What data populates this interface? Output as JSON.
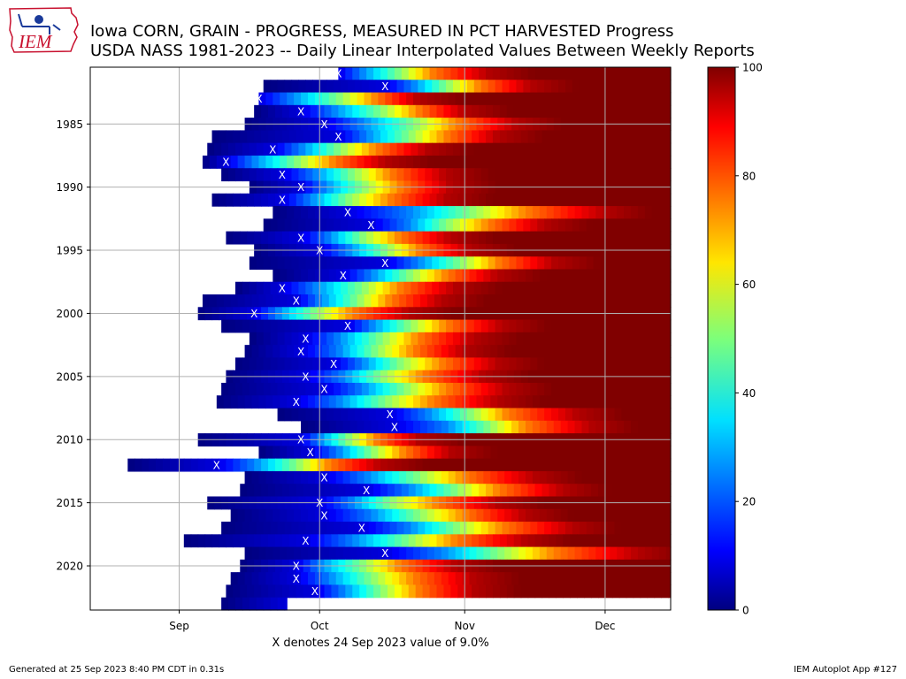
{
  "header": {
    "title_line1": "Iowa CORN, GRAIN - PROGRESS, MEASURED IN PCT HARVESTED Progress",
    "title_line2": "USDA NASS 1981-2023 -- Daily Linear Interpolated Values Between Weekly Reports",
    "logo_text": "IEM"
  },
  "footer": {
    "generated": "Generated at 25 Sep 2023 8:40 PM CDT in 0.31s",
    "app": "IEM Autoplot App #127"
  },
  "colors": {
    "logo_red": "#c8102e",
    "logo_blue": "#1a3a9a",
    "marker": "#ffffff",
    "grid": "#b0b0b0",
    "nodata": "#ffffff"
  },
  "chart_data": {
    "type": "heatmap",
    "colormap": "jet",
    "xlabel": "X denotes 24 Sep 2023 value of 9.0%",
    "x_ticks": [
      {
        "label": "Sep",
        "date": "Sep 1"
      },
      {
        "label": "Oct",
        "date": "Oct 1"
      },
      {
        "label": "Nov",
        "date": "Nov 1"
      },
      {
        "label": "Dec",
        "date": "Dec 1"
      }
    ],
    "xlim": [
      "Aug 13",
      "Dec 15"
    ],
    "y_ticks": [
      1985,
      1990,
      1995,
      2000,
      2005,
      2010,
      2015,
      2020
    ],
    "ylim": [
      1980.5,
      2023.5
    ],
    "y_inverted": true,
    "colorbar": {
      "ticks": [
        0,
        20,
        40,
        60,
        80,
        100
      ],
      "range": [
        0,
        100
      ]
    },
    "grid": true,
    "marker": "X",
    "rows": [
      {
        "year": 1981,
        "start": "Oct 5",
        "x_mark": "Oct 5",
        "p9": "Oct 5",
        "p25": "Oct 10",
        "p50": "Oct 18",
        "p75": "Oct 25",
        "p95": "Nov 6"
      },
      {
        "year": 1982,
        "start": "Sep 19",
        "x_mark": "Oct 15",
        "p9": "Oct 15",
        "p25": "Oct 21",
        "p50": "Oct 28",
        "p75": "Nov 4",
        "p95": "Nov 15"
      },
      {
        "year": 1983,
        "start": "Sep 18",
        "x_mark": "Sep 18",
        "p9": "Sep 18",
        "p25": "Sep 25",
        "p50": "Oct 5",
        "p75": "Oct 13",
        "p95": "Oct 22"
      },
      {
        "year": 1984,
        "start": "Sep 17",
        "x_mark": "Sep 27",
        "p9": "Sep 27",
        "p25": "Oct 4",
        "p50": "Oct 14",
        "p75": "Oct 22",
        "p95": "Nov 1"
      },
      {
        "year": 1985,
        "start": "Sep 15",
        "x_mark": "Oct 2",
        "p9": "Oct 2",
        "p25": "Oct 10",
        "p50": "Oct 21",
        "p75": "Oct 30",
        "p95": "Nov 12"
      },
      {
        "year": 1986,
        "start": "Sep 8",
        "x_mark": "Oct 5",
        "p9": "Oct 5",
        "p25": "Oct 11",
        "p50": "Oct 20",
        "p75": "Oct 28",
        "p95": "Nov 8"
      },
      {
        "year": 1987,
        "start": "Sep 7",
        "x_mark": "Sep 21",
        "p9": "Sep 21",
        "p25": "Sep 27",
        "p50": "Oct 5",
        "p75": "Oct 13",
        "p95": "Oct 24"
      },
      {
        "year": 1988,
        "start": "Sep 6",
        "x_mark": "Sep 11",
        "p9": "Sep 11",
        "p25": "Sep 17",
        "p50": "Sep 26",
        "p75": "Oct 4",
        "p95": "Oct 15"
      },
      {
        "year": 1989,
        "start": "Sep 10",
        "x_mark": "Sep 23",
        "p9": "Sep 23",
        "p25": "Sep 30",
        "p50": "Oct 8",
        "p75": "Oct 16",
        "p95": "Oct 28"
      },
      {
        "year": 1990,
        "start": "Sep 16",
        "x_mark": "Sep 27",
        "p9": "Sep 27",
        "p25": "Oct 2",
        "p50": "Oct 10",
        "p75": "Oct 18",
        "p95": "Oct 29"
      },
      {
        "year": 1991,
        "start": "Sep 8",
        "x_mark": "Sep 23",
        "p9": "Sep 23",
        "p25": "Sep 29",
        "p50": "Oct 7",
        "p75": "Oct 16",
        "p95": "Oct 28"
      },
      {
        "year": 1992,
        "start": "Sep 21",
        "x_mark": "Oct 7",
        "p9": "Oct 7",
        "p25": "Oct 20",
        "p50": "Nov 2",
        "p75": "Nov 14",
        "p95": "Dec 1"
      },
      {
        "year": 1993,
        "start": "Sep 19",
        "x_mark": "Oct 12",
        "p9": "Oct 12",
        "p25": "Oct 20",
        "p50": "Oct 28",
        "p75": "Nov 6",
        "p95": "Nov 18"
      },
      {
        "year": 1994,
        "start": "Sep 11",
        "x_mark": "Sep 27",
        "p9": "Sep 27",
        "p25": "Oct 3",
        "p50": "Oct 10",
        "p75": "Oct 18",
        "p95": "Oct 29"
      },
      {
        "year": 1995,
        "start": "Sep 17",
        "x_mark": "Oct 1",
        "p9": "Oct 1",
        "p25": "Oct 7",
        "p50": "Oct 15",
        "p75": "Oct 22",
        "p95": "Nov 2"
      },
      {
        "year": 1996,
        "start": "Sep 16",
        "x_mark": "Oct 15",
        "p9": "Oct 15",
        "p25": "Oct 22",
        "p50": "Oct 31",
        "p75": "Nov 8",
        "p95": "Nov 20"
      },
      {
        "year": 1997,
        "start": "Sep 21",
        "x_mark": "Oct 6",
        "p9": "Oct 6",
        "p25": "Oct 12",
        "p50": "Oct 20",
        "p75": "Oct 28",
        "p95": "Nov 8"
      },
      {
        "year": 1998,
        "start": "Sep 13",
        "x_mark": "Sep 23",
        "p9": "Sep 23",
        "p25": "Sep 30",
        "p50": "Oct 10",
        "p75": "Oct 18",
        "p95": "Oct 30"
      },
      {
        "year": 1999,
        "start": "Sep 6",
        "x_mark": "Sep 26",
        "p9": "Sep 26",
        "p25": "Oct 1",
        "p50": "Oct 9",
        "p75": "Oct 16",
        "p95": "Oct 27"
      },
      {
        "year": 2000,
        "start": "Sep 5",
        "x_mark": "Sep 17",
        "p9": "Sep 17",
        "p25": "Sep 22",
        "p50": "Sep 30",
        "p75": "Oct 8",
        "p95": "Oct 20"
      },
      {
        "year": 2001,
        "start": "Sep 10",
        "x_mark": "Oct 7",
        "p9": "Oct 7",
        "p25": "Oct 12",
        "p50": "Oct 20",
        "p75": "Oct 28",
        "p95": "Nov 9"
      },
      {
        "year": 2002,
        "start": "Sep 16",
        "x_mark": "Sep 28",
        "p9": "Sep 28",
        "p25": "Oct 5",
        "p50": "Oct 14",
        "p75": "Oct 22",
        "p95": "Nov 3"
      },
      {
        "year": 2003,
        "start": "Sep 15",
        "x_mark": "Sep 27",
        "p9": "Sep 27",
        "p25": "Oct 5",
        "p50": "Oct 13",
        "p75": "Oct 21",
        "p95": "Nov 1"
      },
      {
        "year": 2004,
        "start": "Sep 13",
        "x_mark": "Oct 4",
        "p9": "Oct 4",
        "p25": "Oct 10",
        "p50": "Oct 18",
        "p75": "Oct 27",
        "p95": "Nov 8"
      },
      {
        "year": 2005,
        "start": "Sep 11",
        "x_mark": "Sep 28",
        "p9": "Sep 28",
        "p25": "Oct 6",
        "p50": "Oct 14",
        "p75": "Oct 23",
        "p95": "Nov 5"
      },
      {
        "year": 2006,
        "start": "Sep 10",
        "x_mark": "Oct 2",
        "p9": "Oct 2",
        "p25": "Oct 10",
        "p50": "Oct 19",
        "p75": "Oct 28",
        "p95": "Nov 10"
      },
      {
        "year": 2007,
        "start": "Sep 9",
        "x_mark": "Sep 26",
        "p9": "Sep 26",
        "p25": "Oct 5",
        "p50": "Oct 15",
        "p75": "Oct 25",
        "p95": "Nov 8"
      },
      {
        "year": 2008,
        "start": "Sep 22",
        "x_mark": "Oct 16",
        "p9": "Oct 16",
        "p25": "Oct 24",
        "p50": "Nov 2",
        "p75": "Nov 10",
        "p95": "Nov 25"
      },
      {
        "year": 2009,
        "start": "Sep 27",
        "x_mark": "Oct 17",
        "p9": "Oct 17",
        "p25": "Oct 28",
        "p50": "Nov 6",
        "p75": "Nov 14",
        "p95": "Nov 28"
      },
      {
        "year": 2010,
        "start": "Sep 5",
        "x_mark": "Sep 27",
        "p9": "Sep 27",
        "p25": "Oct 1",
        "p50": "Oct 7",
        "p75": "Oct 13",
        "p95": "Oct 22"
      },
      {
        "year": 2011,
        "start": "Sep 18",
        "x_mark": "Sep 29",
        "p9": "Sep 29",
        "p25": "Oct 5",
        "p50": "Oct 12",
        "p75": "Oct 19",
        "p95": "Oct 29"
      },
      {
        "year": 2012,
        "start": "Aug 21",
        "x_mark": "Sep 9",
        "p9": "Sep 9",
        "p25": "Sep 17",
        "p50": "Sep 26",
        "p75": "Oct 3",
        "p95": "Oct 14"
      },
      {
        "year": 2013,
        "start": "Sep 15",
        "x_mark": "Oct 2",
        "p9": "Oct 2",
        "p25": "Oct 11",
        "p50": "Oct 22",
        "p75": "Nov 1",
        "p95": "Nov 16"
      },
      {
        "year": 2014,
        "start": "Sep 14",
        "x_mark": "Oct 11",
        "p9": "Oct 11",
        "p25": "Oct 20",
        "p50": "Oct 30",
        "p75": "Nov 8",
        "p95": "Nov 22"
      },
      {
        "year": 2015,
        "start": "Sep 7",
        "x_mark": "Oct 1",
        "p9": "Oct 1",
        "p25": "Oct 8",
        "p50": "Oct 16",
        "p75": "Oct 26",
        "p95": "Nov 8"
      },
      {
        "year": 2016,
        "start": "Sep 12",
        "x_mark": "Oct 2",
        "p9": "Oct 2",
        "p25": "Oct 12",
        "p50": "Oct 22",
        "p75": "Nov 1",
        "p95": "Nov 14"
      },
      {
        "year": 2017,
        "start": "Sep 10",
        "x_mark": "Oct 10",
        "p9": "Oct 10",
        "p25": "Oct 20",
        "p50": "Oct 30",
        "p75": "Nov 9",
        "p95": "Nov 24"
      },
      {
        "year": 2018,
        "start": "Sep 2",
        "x_mark": "Sep 28",
        "p9": "Sep 28",
        "p25": "Oct 8",
        "p50": "Oct 20",
        "p75": "Oct 30",
        "p95": "Nov 14"
      },
      {
        "year": 2019,
        "start": "Sep 15",
        "x_mark": "Oct 15",
        "p9": "Oct 15",
        "p25": "Oct 27",
        "p50": "Nov 8",
        "p75": "Nov 20",
        "p95": "Dec 8"
      },
      {
        "year": 2020,
        "start": "Sep 14",
        "x_mark": "Sep 26",
        "p9": "Sep 26",
        "p25": "Oct 1",
        "p50": "Oct 10",
        "p75": "Oct 18",
        "p95": "Oct 30"
      },
      {
        "year": 2021,
        "start": "Sep 12",
        "x_mark": "Sep 26",
        "p9": "Sep 26",
        "p25": "Oct 3",
        "p50": "Oct 12",
        "p75": "Oct 21",
        "p95": "Nov 3"
      },
      {
        "year": 2022,
        "start": "Sep 11",
        "x_mark": "Sep 30",
        "p9": "Sep 30",
        "p25": "Oct 6",
        "p50": "Oct 14",
        "p75": "Oct 22",
        "p95": "Nov 3"
      },
      {
        "year": 2023,
        "start": "Sep 10",
        "end": "Sep 24",
        "value_at_end": 9.0
      }
    ]
  }
}
